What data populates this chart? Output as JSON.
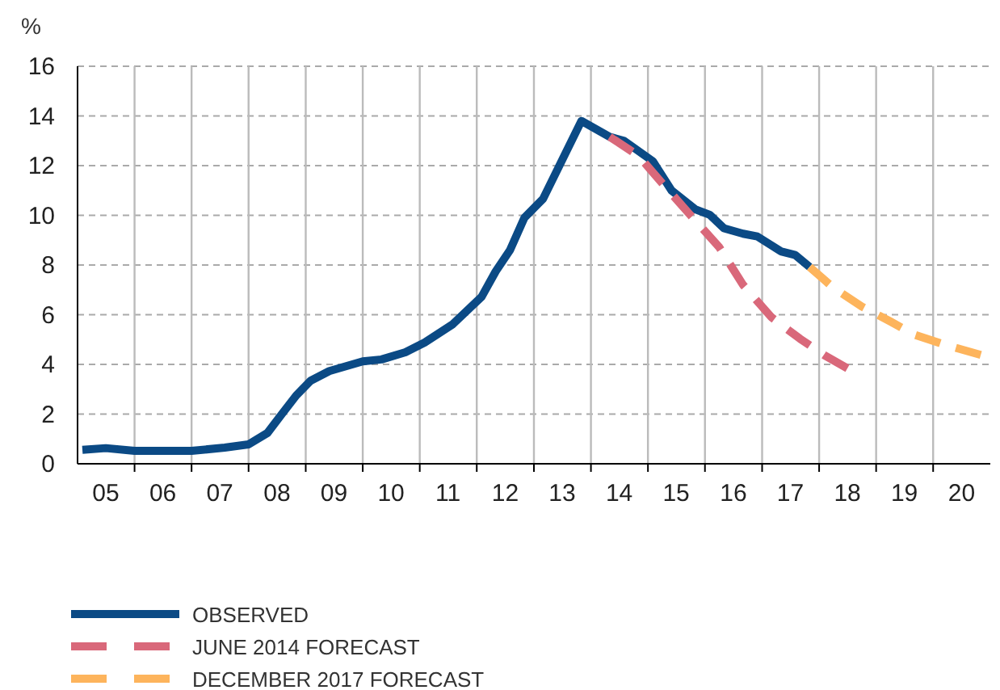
{
  "chart_data": {
    "type": "line",
    "ylabel": "%",
    "xlim": [
      "2005",
      "2021"
    ],
    "xticks": [
      {
        "value": "2005-07",
        "label": "05"
      },
      {
        "value": "2006",
        "label": null
      },
      {
        "value": "2006-07",
        "label": "06"
      },
      {
        "value": "2007",
        "label": null
      },
      {
        "value": "2007-07",
        "label": "07"
      },
      {
        "value": "2008",
        "label": null
      },
      {
        "value": "2008-07",
        "label": "08"
      },
      {
        "value": "2009",
        "label": null
      },
      {
        "value": "2009-07",
        "label": "09"
      },
      {
        "value": "2010",
        "label": null
      },
      {
        "value": "2010-07",
        "label": "10"
      },
      {
        "value": "2011",
        "label": null
      },
      {
        "value": "2011-07",
        "label": "11"
      },
      {
        "value": "2012",
        "label": null
      },
      {
        "value": "2012-07",
        "label": "12"
      },
      {
        "value": "2013",
        "label": null
      },
      {
        "value": "2013-07",
        "label": "13"
      },
      {
        "value": "2014",
        "label": null
      },
      {
        "value": "2014-07",
        "label": "14"
      },
      {
        "value": "2015",
        "label": null
      },
      {
        "value": "2015-07",
        "label": "15"
      },
      {
        "value": "2016",
        "label": null
      },
      {
        "value": "2016-07",
        "label": "16"
      },
      {
        "value": "2017",
        "label": null
      },
      {
        "value": "2017-07",
        "label": "17"
      },
      {
        "value": "2018",
        "label": null
      },
      {
        "value": "2018-07",
        "label": "18"
      },
      {
        "value": "2019",
        "label": null
      },
      {
        "value": "2019-07",
        "label": "19"
      },
      {
        "value": "2020",
        "label": null
      },
      {
        "value": "2020-07",
        "label": "20"
      }
    ],
    "ylim": [
      0,
      16
    ],
    "yticks": [
      0,
      2,
      4,
      6,
      8,
      10,
      12,
      14,
      16
    ],
    "grid": true,
    "legend": "bottom",
    "marker": "none",
    "series": [
      {
        "name": "OBSERVED",
        "color": "#0b4a85",
        "line_style": "solid",
        "x": [
          "2005-02",
          "2005-07",
          "2006-01",
          "2007-01",
          "2007-08",
          "2008-01",
          "2008-05",
          "2008-08",
          "2008-11",
          "2009-02",
          "2009-06",
          "2010-01",
          "2010-05",
          "2010-10",
          "2011-02",
          "2011-08",
          "2012-02",
          "2012-05",
          "2012-08",
          "2012-11",
          "2013-03",
          "2013-11",
          "2014-05",
          "2014-08",
          "2015-02",
          "2015-06",
          "2015-11",
          "2016-02",
          "2016-05",
          "2016-09",
          "2016-12",
          "2017-05",
          "2017-08",
          "2017-11"
        ],
        "values": [
          0.56,
          0.63,
          0.52,
          0.52,
          0.65,
          0.78,
          1.24,
          2.0,
          2.75,
          3.34,
          3.73,
          4.12,
          4.2,
          4.49,
          4.88,
          5.62,
          6.72,
          7.74,
          8.6,
          9.9,
          10.67,
          13.8,
          13.16,
          13.0,
          12.18,
          11.0,
          10.24,
          10.02,
          9.48,
          9.26,
          9.15,
          8.55,
          8.4,
          7.92
        ]
      },
      {
        "name": "JUNE 2014 FORECAST",
        "color": "#d9687a",
        "line_style": "dashed",
        "x": [
          "2014-05",
          "2014-11",
          "2015-04",
          "2015-10",
          "2016-04",
          "2016-09",
          "2017-03",
          "2017-09",
          "2018-02",
          "2018-07"
        ],
        "values": [
          13.16,
          12.4,
          11.3,
          10.0,
          8.72,
          7.2,
          5.9,
          5.03,
          4.38,
          3.84
        ]
      },
      {
        "name": "DECEMBER 2017 FORECAST",
        "color": "#fdb45c",
        "line_style": "dashed",
        "x": [
          "2017-11",
          "2018-04",
          "2018-10",
          "2019-04",
          "2019-09",
          "2020-03",
          "2020-11"
        ],
        "values": [
          7.92,
          7.09,
          6.33,
          5.73,
          5.2,
          4.82,
          4.38
        ]
      }
    ]
  }
}
